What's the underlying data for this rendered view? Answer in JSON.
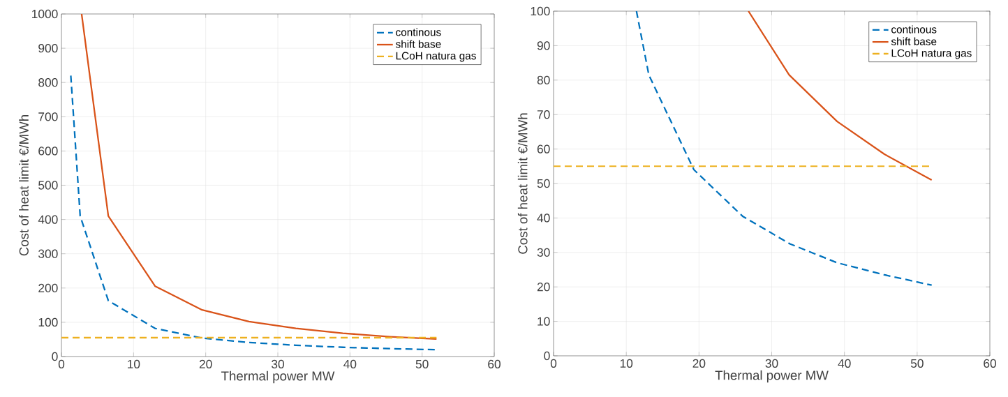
{
  "chart_data": [
    {
      "type": "line",
      "xlabel": "Thermal power MW",
      "ylabel": "Cost of heat limit €/MWh",
      "xlim": [
        0,
        60
      ],
      "ylim": [
        0,
        1000
      ],
      "xticks": [
        0,
        10,
        20,
        30,
        40,
        50,
        60
      ],
      "yticks": [
        0,
        100,
        200,
        300,
        400,
        500,
        600,
        700,
        800,
        900,
        1000
      ],
      "grid": true,
      "legend": "top right",
      "marker": "none",
      "series": [
        {
          "name": "continous",
          "color": "#0072bd",
          "line_style": "dashed",
          "x": [
            1.3,
            2.6,
            6.5,
            13,
            19.5,
            26,
            32.5,
            39,
            45.5,
            52
          ],
          "values": [
            820,
            410,
            163,
            82,
            54,
            41,
            33,
            27,
            23,
            20
          ]
        },
        {
          "name": "shift base",
          "color": "#d95319",
          "line_style": "solid",
          "x": [
            2.8,
            6.5,
            13,
            19.5,
            26,
            32.5,
            39,
            45.5,
            52
          ],
          "values": [
            1000,
            410,
            205,
            136,
            102,
            82,
            68,
            58,
            51
          ]
        },
        {
          "name": "LCoH natura gas",
          "color": "#edb120",
          "line_style": "dashed",
          "x": [
            0,
            52
          ],
          "values": [
            55,
            55
          ]
        }
      ]
    },
    {
      "type": "line",
      "xlabel": "Thermal power MW",
      "ylabel": "Cost of heat limit €/MWh",
      "xlim": [
        0,
        60
      ],
      "ylim": [
        0,
        100
      ],
      "xticks": [
        0,
        10,
        20,
        30,
        40,
        50,
        60
      ],
      "yticks": [
        0,
        10,
        20,
        30,
        40,
        50,
        60,
        70,
        80,
        90,
        100
      ],
      "grid": true,
      "legend": "top right",
      "marker": "none",
      "series": [
        {
          "name": "continous",
          "color": "#0072bd",
          "line_style": "dashed",
          "x": [
            11.4,
            13.1,
            19.3,
            26,
            32.5,
            39,
            45.5,
            52
          ],
          "values": [
            100,
            81.5,
            54,
            40.5,
            32.5,
            27,
            23.5,
            20.5
          ]
        },
        {
          "name": "shift base",
          "color": "#d95319",
          "line_style": "solid",
          "x": [
            26.8,
            32.4,
            39,
            45.5,
            52
          ],
          "values": [
            100,
            81.5,
            68,
            58.5,
            51
          ]
        },
        {
          "name": "LCoH natura gas",
          "color": "#edb120",
          "line_style": "dashed",
          "x": [
            0,
            52
          ],
          "values": [
            55,
            55
          ]
        }
      ]
    }
  ]
}
